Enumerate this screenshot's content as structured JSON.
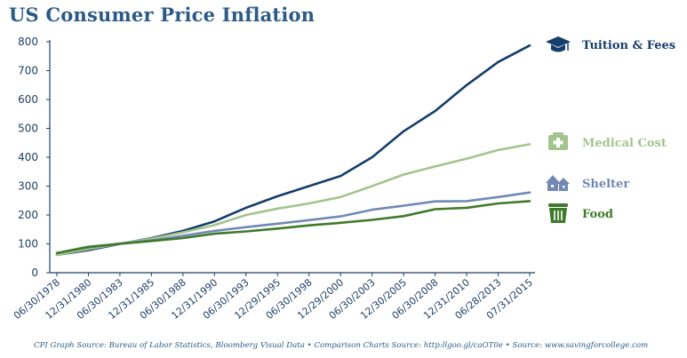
{
  "title": "US Consumer Price Inflation",
  "source_note": "CPI Graph Source: Bureau of Labor Statistics, Bloomberg Visual Data • Comparison Charts Source: http:llgoo.gl/caOT0e • Source: www.savingforcollege.com",
  "chart_data": {
    "type": "line",
    "title": "US Consumer Price Inflation",
    "xlabel": "",
    "ylabel": "",
    "ylim": [
      0,
      800
    ],
    "yticks": [
      0,
      100,
      200,
      300,
      400,
      500,
      600,
      700,
      800
    ],
    "x_tick_labels": [
      "06/30/1978",
      "12/31/1980",
      "06/30/1983",
      "12/31/1985",
      "06/30/1988",
      "12/31/1990",
      "06/30/1993",
      "12/29/1995",
      "06/30/1998",
      "12/29/2000",
      "06/30/2003",
      "12/30/2005",
      "06/30/2008",
      "12/31/2010",
      "06/28/2013",
      "07/31/2015"
    ],
    "grid": false,
    "legend_placement": "right",
    "x": [
      "06/30/1978",
      "12/31/1980",
      "06/30/1983",
      "12/31/1985",
      "06/30/1988",
      "12/31/1990",
      "06/30/1993",
      "12/29/1995",
      "06/30/1998",
      "12/29/2000",
      "06/30/2003",
      "12/30/2005",
      "06/30/2008",
      "12/31/2010",
      "06/28/2013",
      "07/31/2015"
    ],
    "series": [
      {
        "name": "Tuition & Fees",
        "color": "#163d6b",
        "icon": "graduation-cap-icon",
        "values": [
          62,
          78,
          100,
          120,
          145,
          178,
          225,
          265,
          300,
          335,
          400,
          490,
          560,
          650,
          730,
          787
        ]
      },
      {
        "name": "Medical Cost",
        "color": "#a3c48c",
        "icon": "medical-kit-icon",
        "values": [
          62,
          82,
          101,
          118,
          140,
          165,
          200,
          222,
          240,
          262,
          300,
          340,
          368,
          395,
          425,
          445
        ]
      },
      {
        "name": "Shelter",
        "color": "#7189b4",
        "icon": "house-icon",
        "values": [
          68,
          88,
          101,
          112,
          128,
          145,
          158,
          170,
          182,
          195,
          218,
          232,
          247,
          248,
          262,
          278
        ]
      },
      {
        "name": "Food",
        "color": "#3f7a2a",
        "icon": "food-bin-icon",
        "values": [
          68,
          90,
          100,
          110,
          120,
          135,
          143,
          153,
          164,
          173,
          183,
          196,
          220,
          225,
          240,
          248
        ]
      }
    ]
  }
}
